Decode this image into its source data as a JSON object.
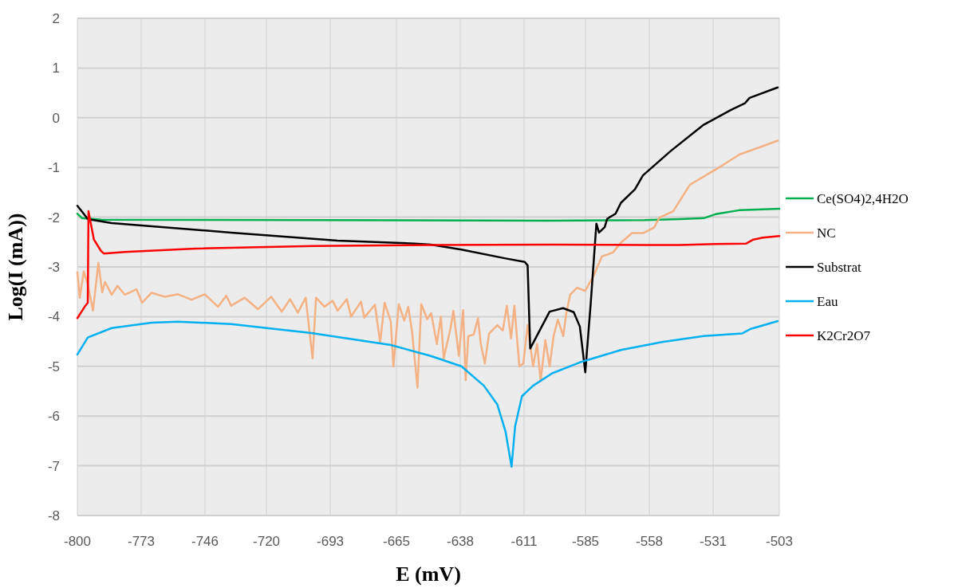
{
  "chart_data": {
    "type": "line",
    "xlabel": "E (mV)",
    "ylabel": "Log(I (mA))",
    "xlim": [
      -800,
      -503
    ],
    "xticks": [
      -800,
      -773,
      -746,
      -720,
      -693,
      -665,
      -638,
      -611,
      -585,
      -558,
      -531,
      -503
    ],
    "ylim": [
      -8,
      2
    ],
    "yticks": [
      -8,
      -7,
      -6,
      -5,
      -4,
      -3,
      -2,
      -1,
      0,
      1,
      2
    ],
    "grid": true,
    "legend": "right",
    "marker": "none",
    "line_style": "solid",
    "series": [
      {
        "name": "Ce(SO4)2,4H2O",
        "color": "#00b050",
        "x": [
          -800,
          -798,
          -790,
          -700,
          -600,
          -560,
          -545,
          -535,
          -530,
          -520,
          -515,
          -503
        ],
        "values": [
          -1.93,
          -2.02,
          -2.05,
          -2.06,
          -2.07,
          -2.06,
          -2.04,
          -2.02,
          -1.94,
          -1.86,
          -1.85,
          -1.83
        ]
      },
      {
        "name": "NC",
        "color": "#f4b183",
        "x": [
          -800,
          -799,
          -797.3,
          -795.6,
          -793.4,
          -791.1,
          -789.5,
          -788.3,
          -785.5,
          -783,
          -779.9,
          -775,
          -772.6,
          -768.6,
          -763,
          -757.4,
          -751.7,
          -746.1,
          -740.5,
          -737,
          -734.9,
          -729.2,
          -723.6,
          -718,
          -713.5,
          -710,
          -706.7,
          -703.4,
          -700.5,
          -699,
          -695.5,
          -692,
          -689.9,
          -686,
          -684.2,
          -680,
          -678.6,
          -674.1,
          -671.9,
          -670,
          -667.4,
          -666.3,
          -664,
          -661.7,
          -660,
          -658.4,
          -656.1,
          -654.5,
          -652,
          -650.3,
          -647.9,
          -646.2,
          -645,
          -642.1,
          -640.9,
          -638.6,
          -636.8,
          -635.7,
          -634.6,
          -632.3,
          -630.5,
          -629.3,
          -627.6,
          -625.8,
          -622.3,
          -620,
          -618.3,
          -616.5,
          -615.1,
          -613,
          -611.3,
          -609.5,
          -607.2,
          -605.5,
          -604,
          -602,
          -600.2,
          -598.5,
          -596.7,
          -594.4,
          -593.2,
          -591.5,
          -588.6,
          -585.1,
          -581.6,
          -578.1,
          -573.4,
          -570,
          -565.3,
          -560.6,
          -556,
          -553.7,
          -547.9,
          -540.9,
          -529.2,
          -519.9,
          -503.6
        ],
        "values": [
          -3.11,
          -3.62,
          -3.09,
          -3.35,
          -3.88,
          -2.92,
          -3.51,
          -3.3,
          -3.56,
          -3.38,
          -3.56,
          -3.45,
          -3.72,
          -3.52,
          -3.6,
          -3.55,
          -3.66,
          -3.55,
          -3.8,
          -3.58,
          -3.78,
          -3.62,
          -3.85,
          -3.6,
          -3.9,
          -3.65,
          -3.92,
          -3.62,
          -4.84,
          -3.62,
          -3.8,
          -3.68,
          -3.88,
          -3.65,
          -4.0,
          -3.7,
          -4.02,
          -3.76,
          -4.52,
          -3.72,
          -4.1,
          -5.0,
          -3.75,
          -4.08,
          -3.8,
          -4.3,
          -5.43,
          -3.75,
          -4.05,
          -3.93,
          -4.55,
          -4.0,
          -4.84,
          -4.23,
          -3.88,
          -4.79,
          -3.87,
          -5.28,
          -4.39,
          -4.36,
          -4.03,
          -4.55,
          -4.94,
          -4.34,
          -4.17,
          -4.28,
          -3.78,
          -4.44,
          -3.78,
          -5.0,
          -4.94,
          -4.17,
          -5.0,
          -4.55,
          -5.3,
          -4.47,
          -5.0,
          -4.39,
          -4.06,
          -4.39,
          -3.95,
          -3.56,
          -3.42,
          -3.48,
          -3.18,
          -2.79,
          -2.71,
          -2.51,
          -2.32,
          -2.32,
          -2.21,
          -2.01,
          -1.88,
          -1.35,
          -1.02,
          -0.74,
          -0.46
        ]
      },
      {
        "name": "Substrat",
        "color": "#000000",
        "x": [
          -800,
          -797,
          -795.6,
          -785.5,
          -734.9,
          -690,
          -657.3,
          -650.5,
          -637.5,
          -618.8,
          -610.7,
          -609.5,
          -608.4,
          -600.2,
          -594.5,
          -590,
          -587.4,
          -585.1,
          -582.8,
          -580.4,
          -579.3,
          -576.9,
          -575.8,
          -572.3,
          -570,
          -564.1,
          -560.7,
          -549,
          -535,
          -523.4,
          -517.6,
          -515.6,
          -503.7
        ],
        "values": [
          -1.77,
          -1.95,
          -2.04,
          -2.12,
          -2.31,
          -2.47,
          -2.53,
          -2.55,
          -2.65,
          -2.83,
          -2.9,
          -2.97,
          -4.64,
          -3.9,
          -3.83,
          -3.91,
          -4.2,
          -5.12,
          -3.73,
          -2.13,
          -2.31,
          -2.2,
          -2.03,
          -1.93,
          -1.71,
          -1.44,
          -1.16,
          -0.67,
          -0.14,
          0.16,
          0.29,
          0.4,
          0.61
        ]
      },
      {
        "name": "Eau",
        "color": "#00b0f0",
        "x": [
          -800,
          -795.6,
          -785.5,
          -768.6,
          -757.4,
          -734.9,
          -701,
          -667.4,
          -650.5,
          -637.5,
          -628,
          -622.3,
          -618.8,
          -616.3,
          -614.8,
          -611.9,
          -607.2,
          -599.1,
          -587.4,
          -570,
          -552.6,
          -535,
          -518.8,
          -515.3,
          -503.7
        ],
        "values": [
          -4.76,
          -4.42,
          -4.23,
          -4.12,
          -4.1,
          -4.15,
          -4.33,
          -4.57,
          -4.79,
          -5.0,
          -5.39,
          -5.77,
          -6.32,
          -7.02,
          -6.21,
          -5.6,
          -5.39,
          -5.14,
          -4.92,
          -4.67,
          -4.51,
          -4.39,
          -4.34,
          -4.25,
          -4.09
        ]
      },
      {
        "name": "K2Cr2O7",
        "color": "#ff0000",
        "x": [
          -800,
          -796.6,
          -795.6,
          -795.3,
          -793,
          -790,
          -788.8,
          -780,
          -750,
          -700,
          -650,
          -600,
          -560,
          -545,
          -530,
          -517,
          -514,
          -510,
          -503
        ],
        "values": [
          -4.03,
          -3.78,
          -3.72,
          -1.88,
          -2.45,
          -2.68,
          -2.73,
          -2.7,
          -2.63,
          -2.58,
          -2.56,
          -2.55,
          -2.56,
          -2.56,
          -2.54,
          -2.53,
          -2.45,
          -2.41,
          -2.38
        ]
      }
    ]
  }
}
